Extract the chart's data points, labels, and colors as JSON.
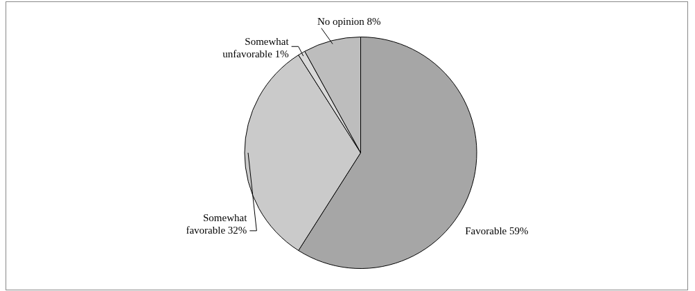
{
  "chart_data": {
    "type": "pie",
    "categories": [
      "Favorable",
      "Somewhat favorable",
      "Somewhat unfavorable",
      "No opinion"
    ],
    "values": [
      59,
      32,
      1,
      8
    ],
    "colors": [
      "#a6a6a6",
      "#cacaca",
      "#d9d9d9",
      "#bdbdbd"
    ],
    "value_labels": [
      "59%",
      "32%",
      "1%",
      "8%"
    ],
    "legend": false
  }
}
